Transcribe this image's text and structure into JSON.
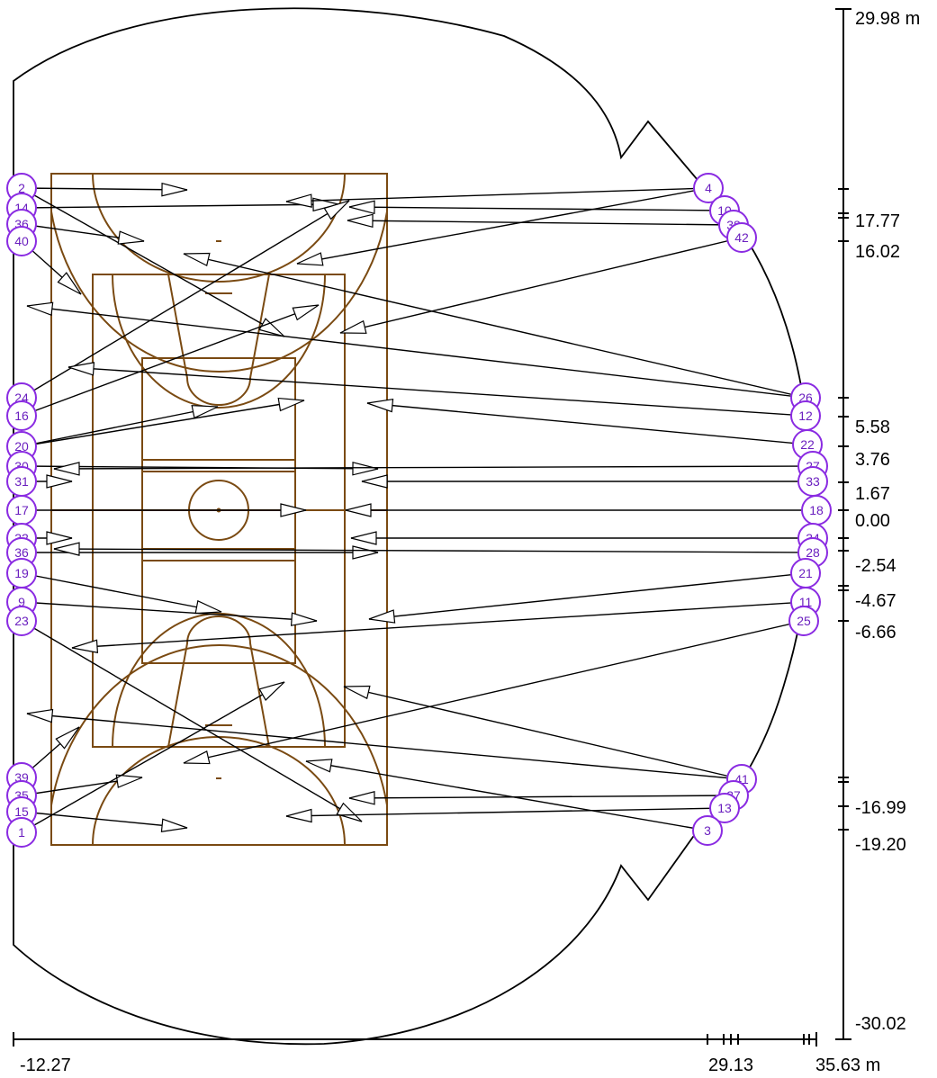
{
  "colors": {
    "court": "#7a4a12",
    "node": "#8a2be2",
    "line": "#000000",
    "background": "#ffffff"
  },
  "y_axis_labels": [
    "29.98 m",
    "17.77",
    "16.02",
    "5.58",
    "3.76",
    "1.67",
    "0.00",
    "-2.54",
    "-4.67",
    "-6.66",
    "-16.99",
    "-19.20",
    "-30.02"
  ],
  "x_axis_labels": [
    "-12.27",
    "29.13",
    "35.63 m"
  ],
  "nodes": [
    {
      "id": "2",
      "label": "2"
    },
    {
      "id": "14",
      "label": "14"
    },
    {
      "id": "36",
      "label": "36"
    },
    {
      "id": "40",
      "label": "40"
    },
    {
      "id": "24",
      "label": "24"
    },
    {
      "id": "16",
      "label": "16"
    },
    {
      "id": "20",
      "label": "20"
    },
    {
      "id": "30",
      "label": "30"
    },
    {
      "id": "31",
      "label": "31"
    },
    {
      "id": "17",
      "label": "17"
    },
    {
      "id": "32",
      "label": "32"
    },
    {
      "id": "36b",
      "label": "36"
    },
    {
      "id": "19",
      "label": "19"
    },
    {
      "id": "9",
      "label": "9"
    },
    {
      "id": "23",
      "label": "23"
    },
    {
      "id": "39",
      "label": "39"
    },
    {
      "id": "35",
      "label": "35"
    },
    {
      "id": "15",
      "label": "15"
    },
    {
      "id": "1",
      "label": "1"
    },
    {
      "id": "4",
      "label": "4"
    },
    {
      "id": "10",
      "label": "10"
    },
    {
      "id": "38",
      "label": "38"
    },
    {
      "id": "42",
      "label": "42"
    },
    {
      "id": "26",
      "label": "26"
    },
    {
      "id": "12",
      "label": "12"
    },
    {
      "id": "22",
      "label": "22"
    },
    {
      "id": "27",
      "label": "27"
    },
    {
      "id": "33",
      "label": "33"
    },
    {
      "id": "18",
      "label": "18"
    },
    {
      "id": "34",
      "label": "34"
    },
    {
      "id": "28",
      "label": "28"
    },
    {
      "id": "21",
      "label": "21"
    },
    {
      "id": "11",
      "label": "11"
    },
    {
      "id": "25",
      "label": "25"
    },
    {
      "id": "41",
      "label": "41"
    },
    {
      "id": "37",
      "label": "37"
    },
    {
      "id": "13",
      "label": "13"
    },
    {
      "id": "3",
      "label": "3"
    }
  ]
}
